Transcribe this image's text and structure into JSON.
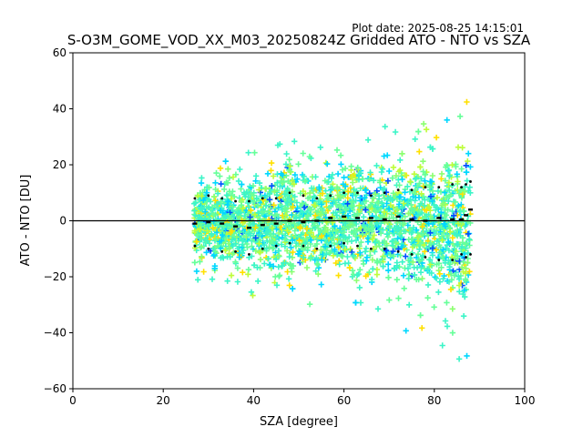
{
  "plot_date": "Plot date: 2025-08-25 14:15:01",
  "chart_data": {
    "type": "scatter",
    "title": "S-O3M_GOME_VOD_XX_M03_20250824Z Gridded ATO - NTO vs SZA",
    "xlabel": "SZA [degree]",
    "ylabel": "ATO - NTO [DU]",
    "xlim": [
      0,
      100
    ],
    "ylim": [
      -60,
      60
    ],
    "xticks": [
      0,
      20,
      40,
      60,
      80,
      100
    ],
    "yticks": [
      -60,
      -40,
      -20,
      0,
      20,
      40,
      60
    ],
    "grid": false,
    "legend": "none",
    "reference_line_y": 0,
    "scatter_envelope": {
      "sza": [
        27,
        30,
        35,
        40,
        45,
        48,
        50,
        55,
        60,
        63,
        65,
        70,
        75,
        78,
        80,
        83,
        85,
        87,
        88
      ],
      "upper": [
        18,
        22,
        24,
        25,
        26,
        38,
        30,
        33,
        34,
        36,
        34,
        35,
        33,
        35,
        36,
        38,
        40,
        44,
        42
      ],
      "lower": [
        -20,
        -27,
        -30,
        -32,
        -30,
        -28,
        -30,
        -30,
        -30,
        -32,
        -35,
        -38,
        -40,
        -38,
        -40,
        -50,
        -55,
        -58,
        -52
      ]
    },
    "point_colors": [
      "#3cf5c8",
      "#66ff99",
      "#00d8ff",
      "#bdfd3a",
      "#ffe000",
      "#0050ff",
      "#8cff70"
    ],
    "series": [
      {
        "role": "median",
        "color": "#000000",
        "x": [
          27,
          30,
          33,
          36,
          39,
          42,
          45,
          48,
          51,
          54,
          57,
          60,
          63,
          66,
          69,
          72,
          75,
          78,
          81,
          84,
          86,
          87,
          88
        ],
        "y": [
          -1,
          -0.5,
          -1,
          -2,
          -2.5,
          -1.5,
          -1,
          0,
          -0.5,
          0,
          1,
          1.5,
          1,
          1,
          0.5,
          1.5,
          0.5,
          0,
          1,
          0.5,
          0.5,
          2,
          4
        ]
      },
      {
        "role": "upper-std",
        "color": "#000000",
        "x": [
          27,
          30,
          33,
          36,
          39,
          42,
          45,
          48,
          51,
          54,
          57,
          60,
          63,
          66,
          69,
          72,
          75,
          78,
          81,
          84,
          86,
          87,
          88
        ],
        "y": [
          8,
          9,
          8,
          7,
          7,
          8,
          8,
          10,
          9,
          8,
          9,
          10,
          10,
          9,
          10,
          11,
          11,
          12,
          12,
          13,
          12,
          13,
          14
        ]
      },
      {
        "role": "lower-std",
        "color": "#000000",
        "x": [
          27,
          30,
          33,
          36,
          39,
          42,
          45,
          48,
          51,
          54,
          57,
          60,
          63,
          66,
          69,
          72,
          75,
          78,
          81,
          84,
          86,
          87,
          88
        ],
        "y": [
          -9,
          -10,
          -11,
          -11,
          -12,
          -10,
          -9,
          -8,
          -9,
          -10,
          -9,
          -8,
          -9,
          -10,
          -10,
          -11,
          -12,
          -13,
          -14,
          -14,
          -12,
          -13,
          -12
        ]
      }
    ]
  }
}
